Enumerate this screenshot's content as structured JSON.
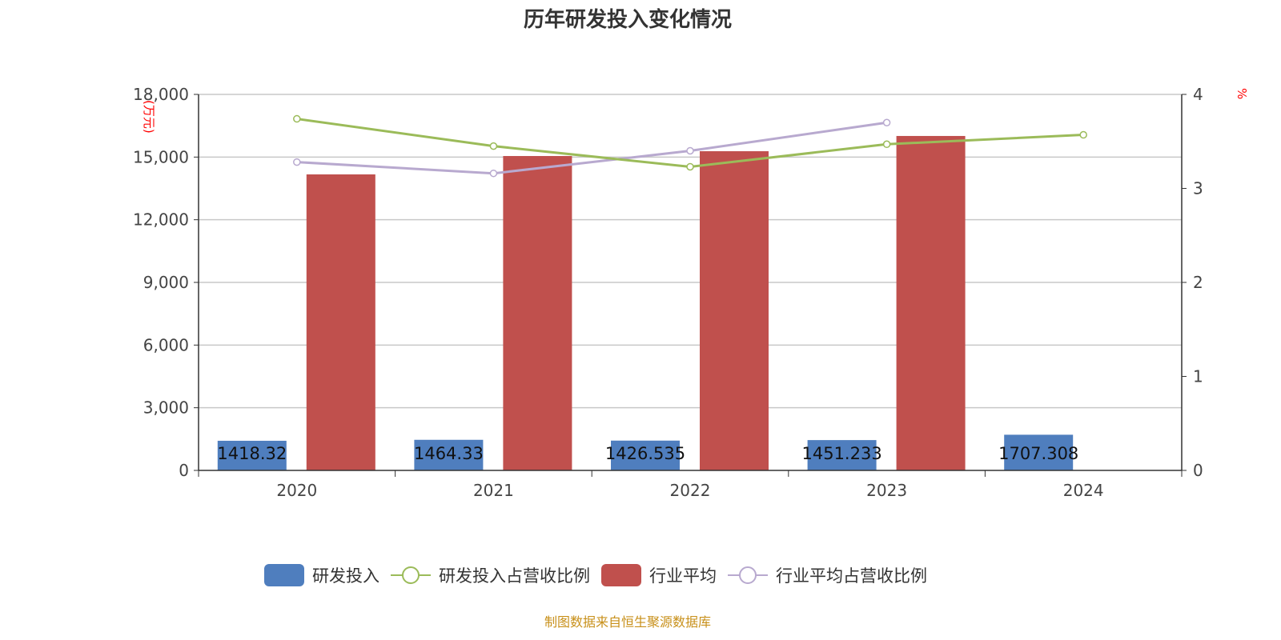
{
  "chart_data": {
    "type": "bar",
    "title": "历年研发投入变化情况",
    "categories": [
      "2020",
      "2021",
      "2022",
      "2023",
      "2024"
    ],
    "left_axis": {
      "label": "(万元)",
      "ylim": [
        0,
        18000
      ],
      "ticks": [
        "0",
        "3,000",
        "6,000",
        "9,000",
        "12,000",
        "15,000",
        "18,000"
      ]
    },
    "right_axis": {
      "label": "%",
      "ylim": [
        0,
        4
      ],
      "ticks": [
        "0",
        "1",
        "2",
        "3",
        "4"
      ]
    },
    "grid": true,
    "legend_position": "bottom",
    "series": [
      {
        "name": "研发投入",
        "type": "bar",
        "axis": "left",
        "color": "#4f7ebe",
        "values": [
          1418.32,
          1464.33,
          1426.535,
          1451.233,
          1707.308
        ],
        "labels": [
          "1418.32",
          "1464.33",
          "1426.535",
          "1451.233",
          "1707.308"
        ]
      },
      {
        "name": "研发投入占营收比例",
        "type": "line",
        "axis": "right",
        "color": "#9bbb59",
        "values": [
          3.74,
          3.45,
          3.23,
          3.47,
          3.57
        ]
      },
      {
        "name": "行业平均",
        "type": "bar",
        "axis": "left",
        "color": "#c0504d",
        "values": [
          14170,
          15050,
          15280,
          16010,
          null
        ]
      },
      {
        "name": "行业平均占营收比例",
        "type": "line",
        "axis": "right",
        "color": "#b8a9cf",
        "values": [
          3.28,
          3.16,
          3.4,
          3.7,
          null
        ]
      }
    ]
  },
  "source": "制图数据来自恒生聚源数据库"
}
